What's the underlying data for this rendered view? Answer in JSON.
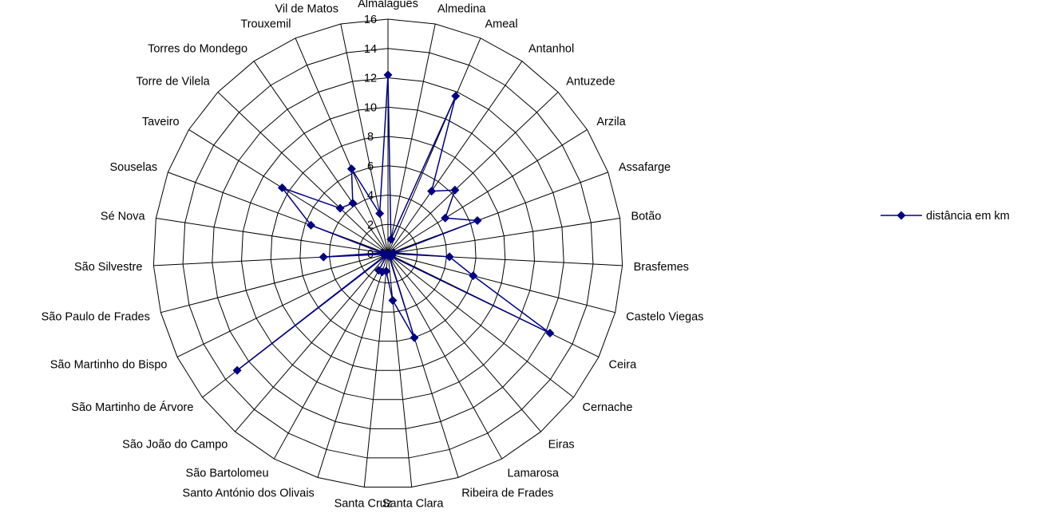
{
  "chart_data": {
    "type": "radar",
    "title": "",
    "categories": [
      "Almalaguês",
      "Almedina",
      "Ameal",
      "Antanhol",
      "Antuzede",
      "Arzila",
      "Assafarge",
      "Botão",
      "Brasfemes",
      "Castelo Viegas",
      "Ceira",
      "Cernache",
      "Eiras",
      "Lamarosa",
      "Ribeira de Frades",
      "Santa Clara",
      "Santa Cruz",
      "Santo António dos Olivais",
      "São Bartolomeu",
      "São João do Campo",
      "São Martinho de Árvore",
      "São Martinho do Bispo",
      "São Paulo de Frades",
      "São Silvestre",
      "Sé Nova",
      "Souselas",
      "Taveiro",
      "Torre de Vilela",
      "Torres do Mondego",
      "Trouxemil",
      "Vil de Matos"
    ],
    "series": [
      {
        "name": "distância em km",
        "color": "#000080",
        "marker": "diamond",
        "values": [
          12.2,
          1.0,
          11.7,
          5.2,
          6.3,
          4.6,
          6.5,
          0.4,
          4.2,
          6.0,
          12.3,
          0.3,
          0.1,
          0.2,
          6.0,
          3.2,
          1.2,
          1.3,
          1.3,
          0.1,
          13.0,
          0.1,
          0.1,
          4.4,
          0.4,
          5.6,
          8.5,
          4.5,
          4.2,
          6.3,
          2.8
        ]
      }
    ],
    "radial_axis": {
      "min": 0,
      "max": 16,
      "step": 2,
      "ticks": [
        "0",
        "2",
        "4",
        "6",
        "8",
        "10",
        "12",
        "14",
        "16"
      ]
    },
    "grid": true,
    "legend": {
      "position": "right"
    }
  }
}
